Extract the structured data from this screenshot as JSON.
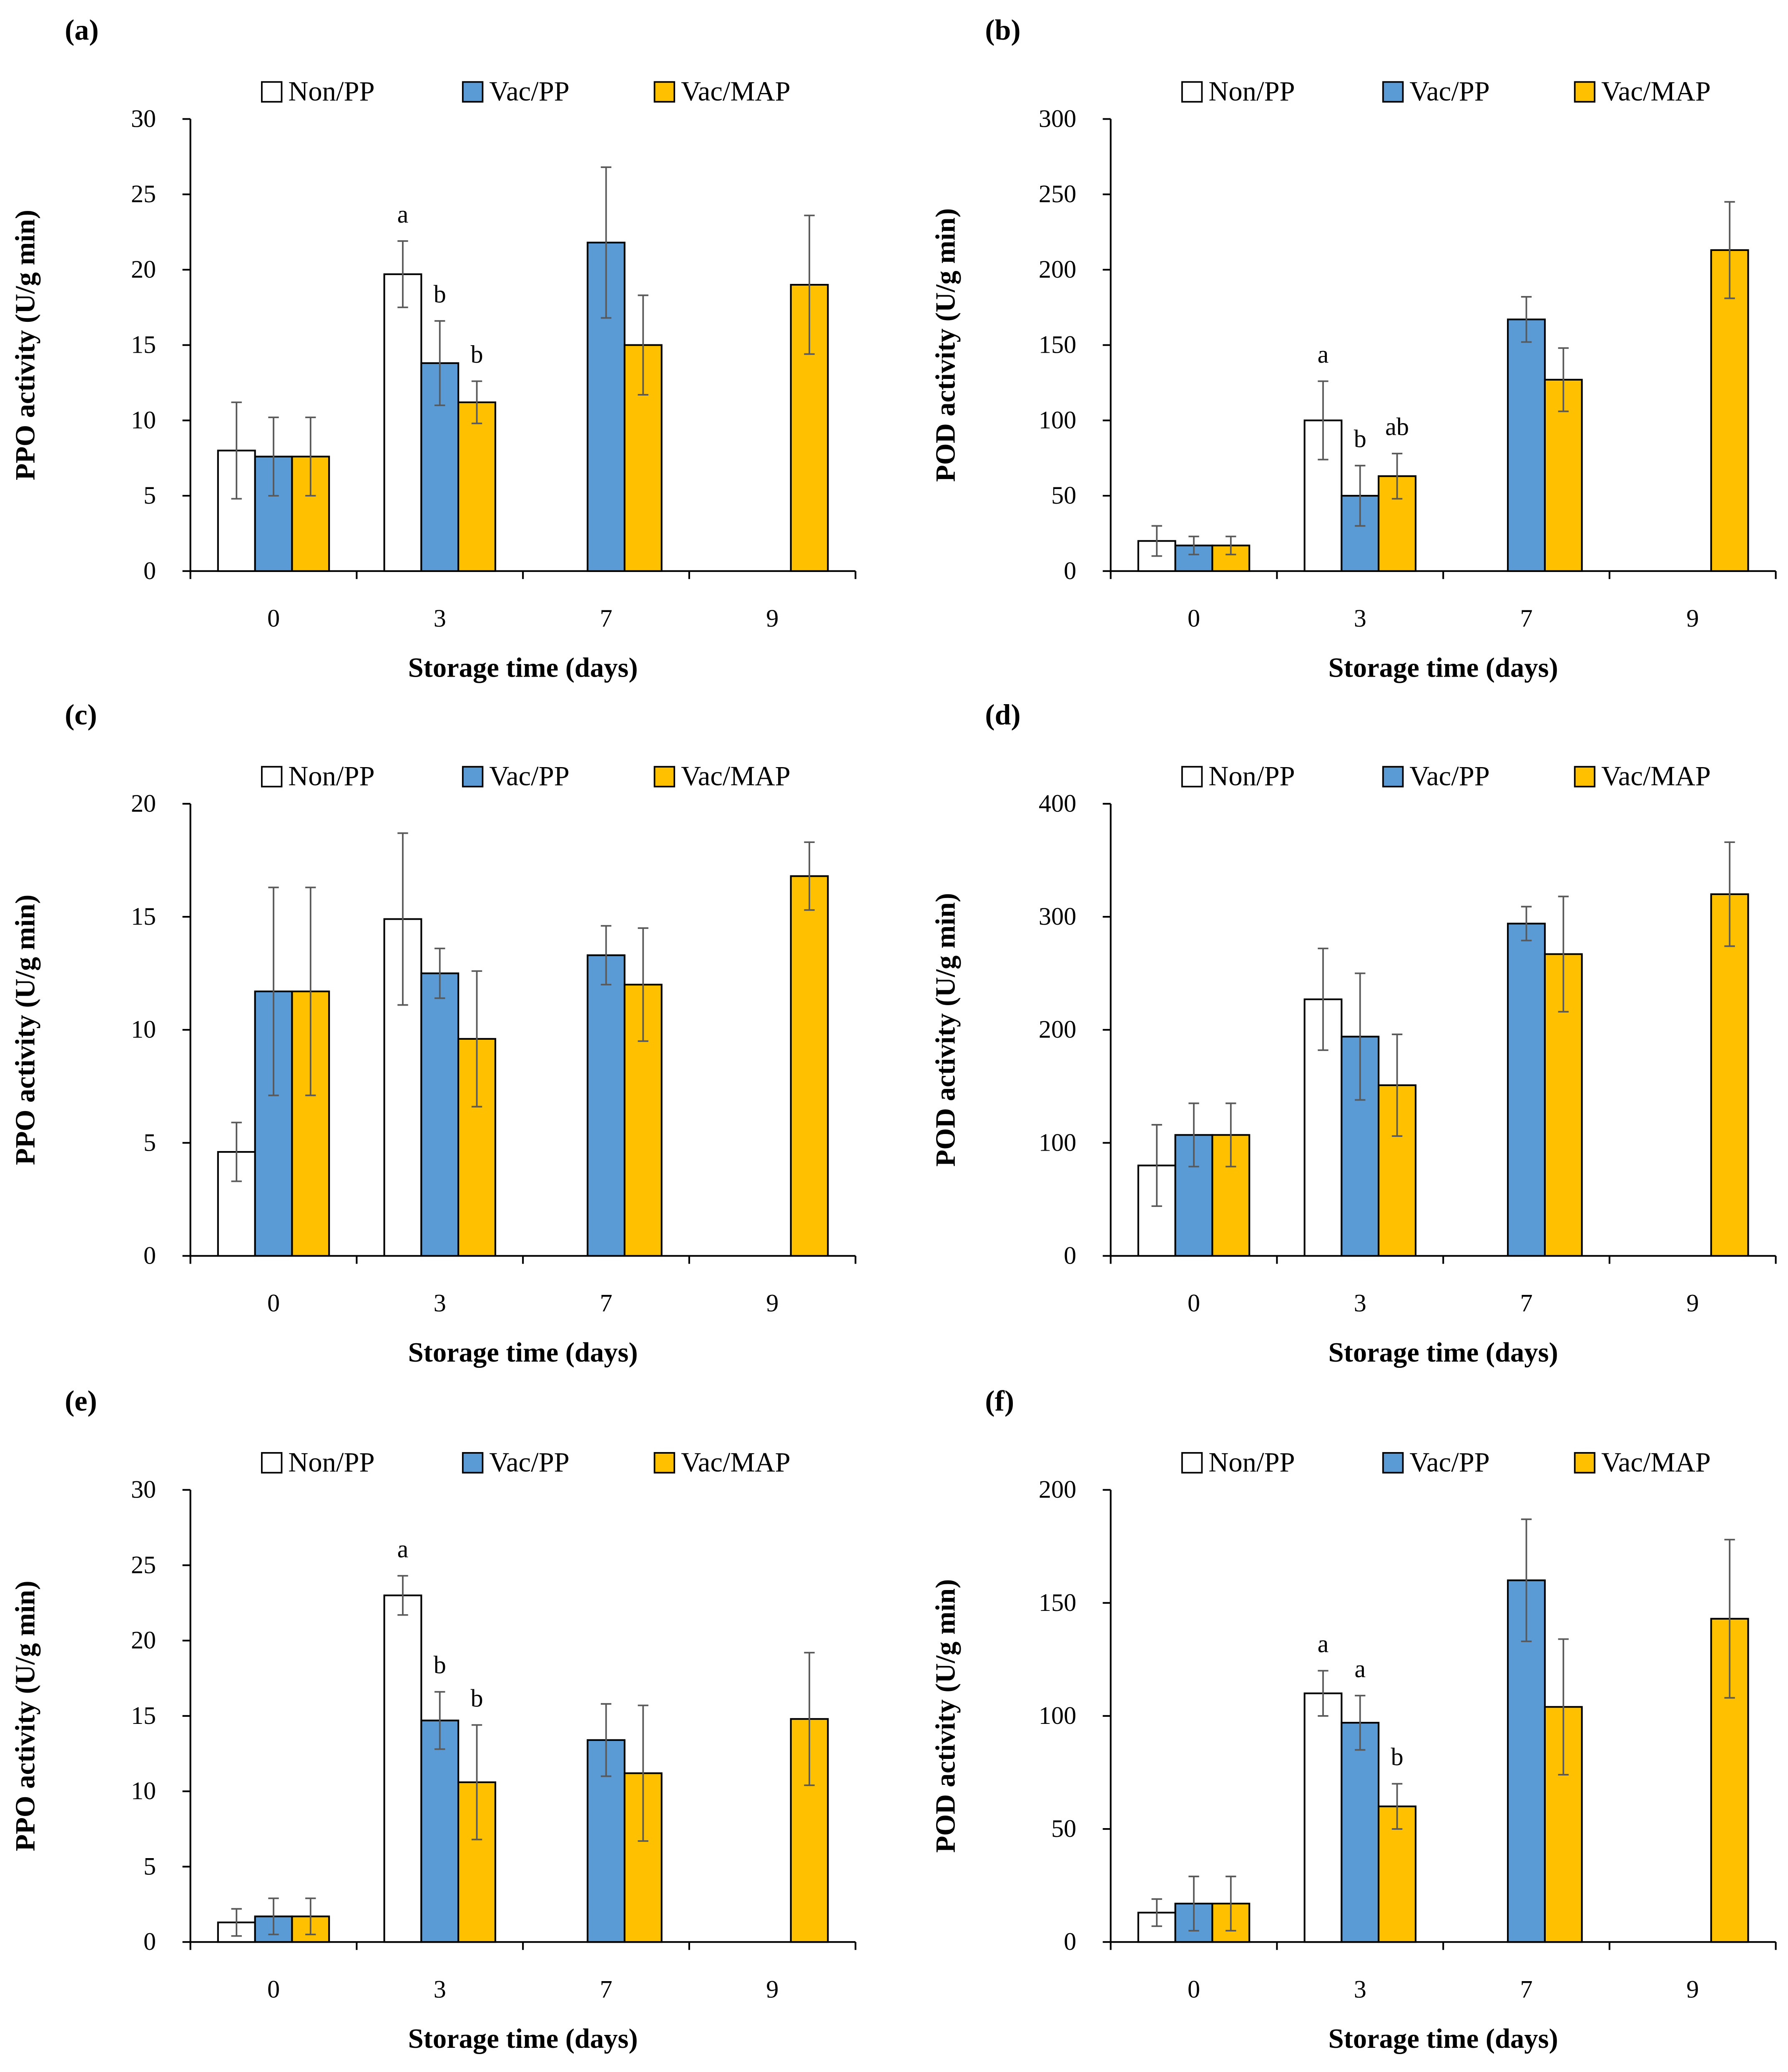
{
  "colors": {
    "Non/PP": "#ffffff",
    "Vac/PP": "#5b9bd5",
    "Vac/MAP": "#ffc000",
    "error_bar": "#595959",
    "axis": "#000000"
  },
  "chart_data": [
    {
      "panel": "(a)",
      "type": "bar",
      "categories": [
        "0",
        "3",
        "7",
        "9"
      ],
      "xlabel": "Storage time (days)",
      "ylabel": "PPO activity (U/g min)",
      "ylim": [
        0,
        30
      ],
      "yticks": [
        0,
        5,
        10,
        15,
        20,
        25,
        30
      ],
      "yticklabels": [
        "0",
        "5",
        "10",
        "15",
        "20",
        "25",
        "30"
      ],
      "series": [
        {
          "name": "Non/PP",
          "values": [
            8.0,
            19.7,
            null,
            null
          ],
          "errors": [
            3.2,
            2.2,
            null,
            null
          ],
          "letters": [
            "",
            "a",
            "",
            ""
          ]
        },
        {
          "name": "Vac/PP",
          "values": [
            7.6,
            13.8,
            21.8,
            null
          ],
          "errors": [
            2.6,
            2.8,
            5.0,
            null
          ],
          "letters": [
            "",
            "b",
            "",
            ""
          ]
        },
        {
          "name": "Vac/MAP",
          "values": [
            7.6,
            11.2,
            15.0,
            19.0
          ],
          "errors": [
            2.6,
            1.4,
            3.3,
            4.6
          ],
          "letters": [
            "",
            "b",
            "",
            ""
          ]
        }
      ]
    },
    {
      "panel": "(b)",
      "type": "bar",
      "categories": [
        "0",
        "3",
        "7",
        "9"
      ],
      "xlabel": "Storage time (days)",
      "ylabel": "POD activity (U/g min)",
      "ylim": [
        0,
        300
      ],
      "yticks": [
        0,
        50,
        100,
        150,
        200,
        250,
        300
      ],
      "yticklabels": [
        "0",
        "50",
        "100",
        "150",
        "200",
        "250",
        "300"
      ],
      "series": [
        {
          "name": "Non/PP",
          "values": [
            20,
            100,
            null,
            null
          ],
          "errors": [
            10,
            26,
            null,
            null
          ],
          "letters": [
            "",
            "a",
            "",
            ""
          ]
        },
        {
          "name": "Vac/PP",
          "values": [
            17,
            50,
            167,
            null
          ],
          "errors": [
            6,
            20,
            15,
            null
          ],
          "letters": [
            "",
            "b",
            "",
            ""
          ]
        },
        {
          "name": "Vac/MAP",
          "values": [
            17,
            63,
            127,
            213
          ],
          "errors": [
            6,
            15,
            21,
            32
          ],
          "letters": [
            "",
            "ab",
            "",
            ""
          ]
        }
      ]
    },
    {
      "panel": "(c)",
      "type": "bar",
      "categories": [
        "0",
        "3",
        "7",
        "9"
      ],
      "xlabel": "Storage time (days)",
      "ylabel": "PPO activity (U/g min)",
      "ylim": [
        0,
        20
      ],
      "yticks": [
        0,
        5,
        10,
        15,
        20
      ],
      "yticklabels": [
        "0",
        "5",
        "10",
        "15",
        "20"
      ],
      "series": [
        {
          "name": "Non/PP",
          "values": [
            4.6,
            14.9,
            null,
            null
          ],
          "errors": [
            1.3,
            3.8,
            null,
            null
          ],
          "letters": [
            "",
            "",
            "",
            ""
          ]
        },
        {
          "name": "Vac/PP",
          "values": [
            11.7,
            12.5,
            13.3,
            null
          ],
          "errors": [
            4.6,
            1.1,
            1.3,
            null
          ],
          "letters": [
            "",
            "",
            "",
            ""
          ]
        },
        {
          "name": "Vac/MAP",
          "values": [
            11.7,
            9.6,
            12.0,
            16.8
          ],
          "errors": [
            4.6,
            3.0,
            2.5,
            1.5
          ],
          "letters": [
            "",
            "",
            "",
            ""
          ]
        }
      ]
    },
    {
      "panel": "(d)",
      "type": "bar",
      "categories": [
        "0",
        "3",
        "7",
        "9"
      ],
      "xlabel": "Storage time (days)",
      "ylabel": "POD activity (U/g min)",
      "ylim": [
        0,
        400
      ],
      "yticks": [
        0,
        100,
        200,
        300,
        400
      ],
      "yticklabels": [
        "0",
        "100",
        "200",
        "300",
        "400"
      ],
      "series": [
        {
          "name": "Non/PP",
          "values": [
            80,
            227,
            null,
            null
          ],
          "errors": [
            36,
            45,
            null,
            null
          ],
          "letters": [
            "",
            "",
            "",
            ""
          ]
        },
        {
          "name": "Vac/PP",
          "values": [
            107,
            194,
            294,
            null
          ],
          "errors": [
            28,
            56,
            15,
            null
          ],
          "letters": [
            "",
            "",
            "",
            ""
          ]
        },
        {
          "name": "Vac/MAP",
          "values": [
            107,
            151,
            267,
            320
          ],
          "errors": [
            28,
            45,
            51,
            46
          ],
          "letters": [
            "",
            "",
            "",
            ""
          ]
        }
      ]
    },
    {
      "panel": "(e)",
      "type": "bar",
      "categories": [
        "0",
        "3",
        "7",
        "9"
      ],
      "xlabel": "Storage time (days)",
      "ylabel": "PPO activity (U/g min)",
      "ylim": [
        0,
        30
      ],
      "yticks": [
        0,
        5,
        10,
        15,
        20,
        25,
        30
      ],
      "yticklabels": [
        "0",
        "5",
        "10",
        "15",
        "20",
        "25",
        "30"
      ],
      "series": [
        {
          "name": "Non/PP",
          "values": [
            1.3,
            23.0,
            null,
            null
          ],
          "errors": [
            0.9,
            1.3,
            null,
            null
          ],
          "letters": [
            "",
            "a",
            "",
            ""
          ]
        },
        {
          "name": "Vac/PP",
          "values": [
            1.7,
            14.7,
            13.4,
            null
          ],
          "errors": [
            1.2,
            1.9,
            2.4,
            null
          ],
          "letters": [
            "",
            "b",
            "",
            ""
          ]
        },
        {
          "name": "Vac/MAP",
          "values": [
            1.7,
            10.6,
            11.2,
            14.8
          ],
          "errors": [
            1.2,
            3.8,
            4.5,
            4.4
          ],
          "letters": [
            "",
            "b",
            "",
            ""
          ]
        }
      ]
    },
    {
      "panel": "(f)",
      "type": "bar",
      "categories": [
        "0",
        "3",
        "7",
        "9"
      ],
      "xlabel": "Storage time (days)",
      "ylabel": "POD activity (U/g min)",
      "ylim": [
        0,
        200
      ],
      "yticks": [
        0,
        50,
        100,
        150,
        200
      ],
      "yticklabels": [
        "0",
        "50",
        "100",
        "150",
        "200"
      ],
      "series": [
        {
          "name": "Non/PP",
          "values": [
            13,
            110,
            null,
            null
          ],
          "errors": [
            6,
            10,
            null,
            null
          ],
          "letters": [
            "",
            "a",
            "",
            ""
          ]
        },
        {
          "name": "Vac/PP",
          "values": [
            17,
            97,
            160,
            null
          ],
          "errors": [
            12,
            12,
            27,
            null
          ],
          "letters": [
            "",
            "a",
            "",
            ""
          ]
        },
        {
          "name": "Vac/MAP",
          "values": [
            17,
            60,
            104,
            143
          ],
          "errors": [
            12,
            10,
            30,
            35
          ],
          "letters": [
            "",
            "b",
            "",
            ""
          ]
        }
      ]
    }
  ]
}
